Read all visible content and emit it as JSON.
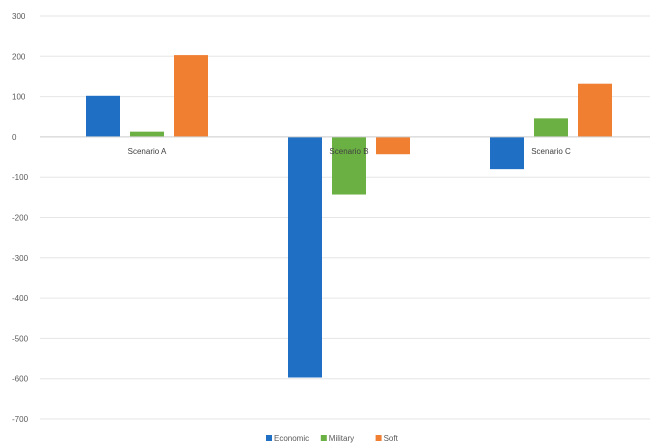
{
  "chart_data": {
    "type": "bar",
    "title": "",
    "xlabel": "",
    "ylabel": "",
    "ylim": [
      -700,
      300
    ],
    "yticks": [
      300,
      200,
      100,
      0,
      -100,
      -200,
      -300,
      -400,
      -500,
      -600,
      -700
    ],
    "grid": true,
    "legend_position": "bottom",
    "categories": [
      "Scenario A",
      "Scenario B",
      "Scenario C"
    ],
    "series": [
      {
        "name": "Economic",
        "color": "#1f6fc5",
        "values": [
          102,
          -597,
          -80
        ]
      },
      {
        "name": "Military",
        "color": "#6ab043",
        "values": [
          13,
          -143,
          46
        ]
      },
      {
        "name": "Soft",
        "color": "#f07f32",
        "values": [
          203,
          -43,
          132
        ]
      }
    ]
  }
}
